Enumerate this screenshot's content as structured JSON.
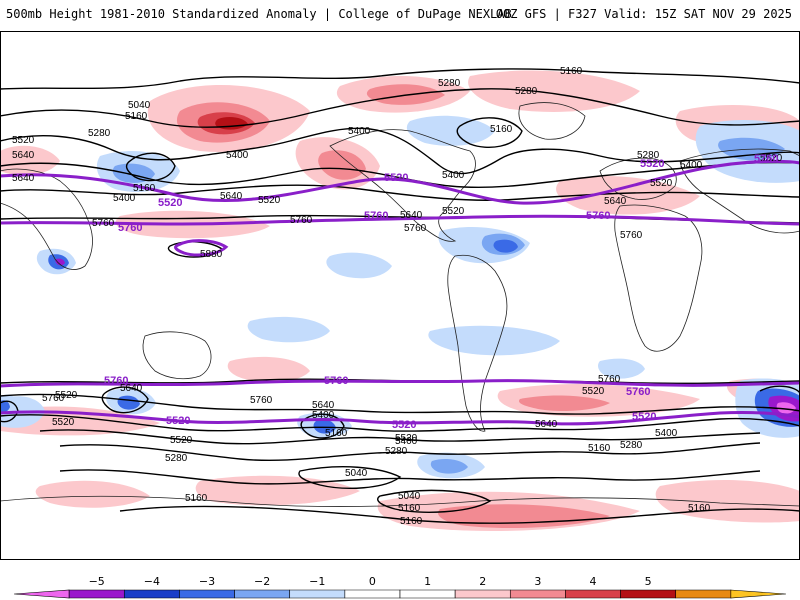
{
  "header": {
    "left": "500mb Height 1981-2010 Standardized Anomaly | College of DuPage NEXLAB",
    "right": "00Z GFS | F327 Valid: 15Z SAT NOV 29 2025"
  },
  "colors": {
    "contour": "#000000",
    "highlight": "#8a1fc9",
    "coast": "#222222"
  },
  "contour_labels": [
    {
      "t": "5160",
      "id": "a1"
    },
    {
      "t": "5280",
      "id": "a2"
    },
    {
      "t": "5280",
      "id": "a3"
    },
    {
      "t": "5040",
      "id": "a4"
    },
    {
      "t": "5160",
      "id": "a5"
    },
    {
      "t": "5280",
      "id": "a6"
    },
    {
      "t": "5520",
      "id": "a7"
    },
    {
      "t": "5640",
      "id": "a8"
    },
    {
      "t": "5400",
      "id": "a9"
    },
    {
      "t": "5400",
      "id": "a10"
    },
    {
      "t": "5160",
      "id": "a11"
    },
    {
      "t": "5160",
      "id": "a12"
    },
    {
      "t": "5400",
      "id": "a13"
    },
    {
      "t": "5640",
      "id": "a14"
    },
    {
      "t": "5520",
      "id": "a15"
    },
    {
      "t": "5760",
      "id": "a16"
    },
    {
      "t": "5400",
      "id": "a17"
    },
    {
      "t": "5640",
      "id": "a18"
    },
    {
      "t": "5520",
      "id": "a19"
    },
    {
      "t": "5760",
      "id": "a20"
    },
    {
      "t": "5880",
      "id": "a21"
    },
    {
      "t": "5280",
      "id": "a22"
    },
    {
      "t": "5400",
      "id": "a23"
    },
    {
      "t": "5520",
      "id": "a24"
    },
    {
      "t": "5640",
      "id": "a25"
    },
    {
      "t": "5760",
      "id": "a26"
    },
    {
      "t": "5760",
      "id": "a27"
    },
    {
      "t": "5640",
      "id": "a28"
    },
    {
      "t": "5520",
      "id": "a29"
    },
    {
      "t": "5520",
      "id": "a30"
    },
    {
      "t": "5280",
      "id": "a31"
    },
    {
      "t": "5760",
      "id": "a32"
    },
    {
      "t": "5640",
      "id": "a33"
    },
    {
      "t": "5400",
      "id": "a34"
    },
    {
      "t": "5160",
      "id": "a35"
    },
    {
      "t": "5520",
      "id": "a36"
    },
    {
      "t": "5400",
      "id": "a37"
    },
    {
      "t": "5280",
      "id": "a38"
    },
    {
      "t": "5040",
      "id": "a39"
    },
    {
      "t": "5040",
      "id": "a40"
    },
    {
      "t": "5160",
      "id": "a41"
    },
    {
      "t": "5160",
      "id": "a42"
    },
    {
      "t": "5640",
      "id": "a43"
    },
    {
      "t": "5520",
      "id": "a44"
    },
    {
      "t": "5160",
      "id": "a45"
    },
    {
      "t": "5280",
      "id": "a46"
    },
    {
      "t": "5400",
      "id": "a47"
    },
    {
      "t": "5520",
      "id": "a48"
    },
    {
      "t": "5760",
      "id": "a49"
    },
    {
      "t": "5160",
      "id": "a50"
    },
    {
      "t": "5520",
      "id": "a51"
    },
    {
      "t": "5640",
      "id": "a52"
    },
    {
      "t": "5760",
      "id": "a53"
    },
    {
      "t": "5160",
      "id": "a54"
    }
  ],
  "highlight_labels": [
    {
      "t": "5520",
      "id": "h1"
    },
    {
      "t": "5760",
      "id": "h2"
    },
    {
      "t": "5520",
      "id": "h3"
    },
    {
      "t": "5760",
      "id": "h4"
    },
    {
      "t": "5520",
      "id": "h5"
    },
    {
      "t": "5760",
      "id": "h6"
    },
    {
      "t": "5760",
      "id": "h7"
    },
    {
      "t": "5760",
      "id": "h8"
    },
    {
      "t": "5520",
      "id": "h9"
    },
    {
      "t": "5520",
      "id": "h10"
    },
    {
      "t": "5760",
      "id": "h11"
    },
    {
      "t": "5520",
      "id": "h12"
    },
    {
      "t": "5760",
      "id": "h13"
    }
  ],
  "colorbar": {
    "ticks": [
      "−5",
      "−4",
      "−3",
      "−2",
      "−1",
      "0",
      "1",
      "2",
      "3",
      "4",
      "5"
    ],
    "colors": [
      "#ee66ee",
      "#9a18cc",
      "#1a3ec8",
      "#3a6ae6",
      "#7aa6f2",
      "#c4dcfc",
      "#ffffff",
      "#ffffff",
      "#fcc8cc",
      "#f28a92",
      "#d8404a",
      "#b41016",
      "#e88a12",
      "#fcc422"
    ]
  }
}
